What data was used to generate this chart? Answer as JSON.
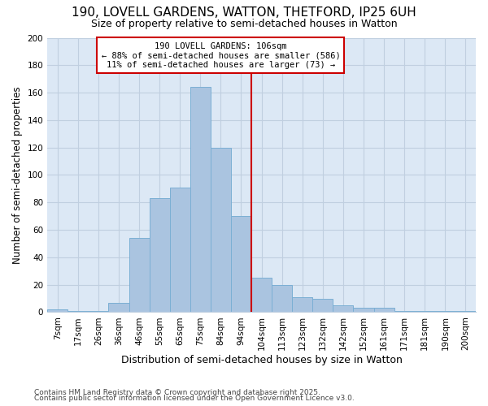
{
  "title1": "190, LOVELL GARDENS, WATTON, THETFORD, IP25 6UH",
  "title2": "Size of property relative to semi-detached houses in Watton",
  "xlabel": "Distribution of semi-detached houses by size in Watton",
  "ylabel": "Number of semi-detached properties",
  "categories": [
    "7sqm",
    "17sqm",
    "26sqm",
    "36sqm",
    "46sqm",
    "55sqm",
    "65sqm",
    "75sqm",
    "84sqm",
    "94sqm",
    "104sqm",
    "113sqm",
    "123sqm",
    "132sqm",
    "142sqm",
    "152sqm",
    "161sqm",
    "171sqm",
    "181sqm",
    "190sqm",
    "200sqm"
  ],
  "values": [
    2,
    1,
    1,
    7,
    54,
    83,
    91,
    164,
    120,
    70,
    25,
    20,
    11,
    10,
    5,
    3,
    3,
    1,
    1,
    1,
    1
  ],
  "annotation_title": "190 LOVELL GARDENS: 106sqm",
  "annotation_line2": "← 88% of semi-detached houses are smaller (586)",
  "annotation_line3": "11% of semi-detached houses are larger (73) →",
  "footer1": "Contains HM Land Registry data © Crown copyright and database right 2025.",
  "footer2": "Contains public sector information licensed under the Open Government Licence v3.0.",
  "bg_color": "#dce8f5",
  "bar_color": "#aac4e0",
  "bar_edge_color": "#7bafd4",
  "annotation_box_color": "#cc0000",
  "red_line_color": "#cc0000",
  "grid_color": "#c0cfe0",
  "ylim": [
    0,
    200
  ],
  "yticks": [
    0,
    20,
    40,
    60,
    80,
    100,
    120,
    140,
    160,
    180,
    200
  ],
  "red_line_index": 10,
  "title1_fontsize": 11,
  "title2_fontsize": 9
}
